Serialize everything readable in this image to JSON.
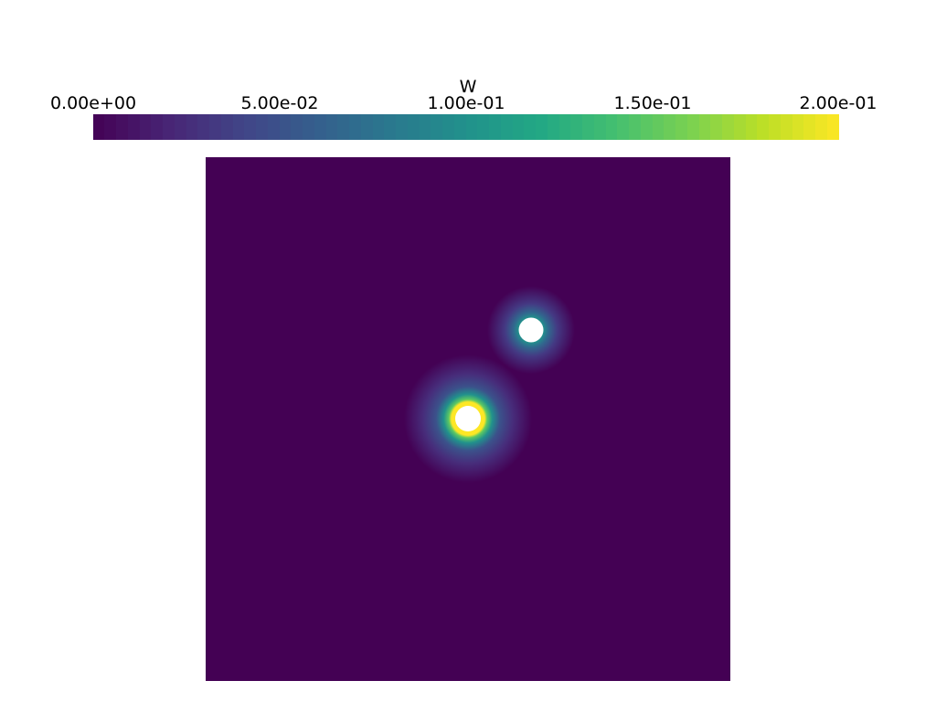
{
  "colorbar": {
    "title": "W",
    "ticks": [
      "0.00e+00",
      "5.00e-02",
      "1.00e-01",
      "1.50e-01",
      "2.00e-01"
    ],
    "range": [
      0.0,
      0.2
    ],
    "colormap": "viridis",
    "colors": {
      "low": "#440154",
      "mid": "#21918c",
      "high": "#fde725"
    }
  },
  "field": {
    "background_value": 0.0,
    "background_color": "#440154",
    "hole_color": "#ffffff",
    "holes": [
      {
        "label": "upper-right-hole",
        "peak_value": 0.1
      },
      {
        "label": "center-hole",
        "peak_value": 0.2
      }
    ]
  }
}
